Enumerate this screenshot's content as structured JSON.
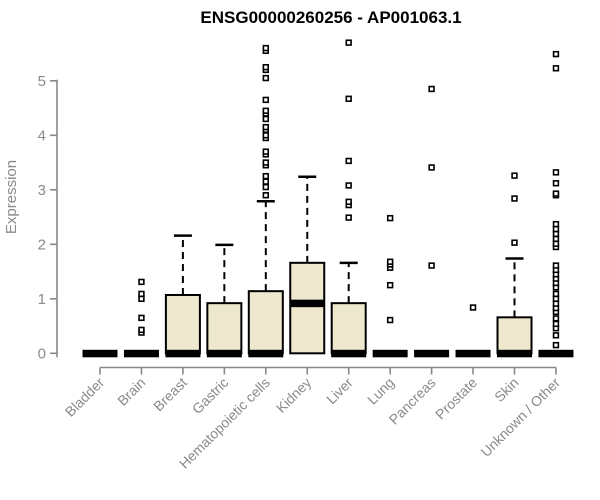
{
  "chart_data": {
    "type": "boxplot",
    "title": "ENSG00000260256 - AP001063.1",
    "ylabel": "Expression",
    "xlabel": "",
    "ylim": [
      0,
      5
    ],
    "yticks": [
      0,
      1,
      2,
      3,
      4,
      5
    ],
    "grid": false,
    "legend": "none",
    "categories": [
      "Bladder",
      "Brain",
      "Breast",
      "Gastric",
      "Hematopoietic cells",
      "Kidney",
      "Liver",
      "Lung",
      "Pancreas",
      "Prostate",
      "Skin",
      "Unknown / Other"
    ],
    "series": [
      {
        "name": "Bladder",
        "whisker_low": 0,
        "q1": 0,
        "median": 0,
        "q3": 0,
        "whisker_high": 0,
        "outliers": []
      },
      {
        "name": "Brain",
        "whisker_low": 0,
        "q1": 0,
        "median": 0,
        "q3": 0,
        "whisker_high": 0,
        "outliers": [
          0.38,
          0.43,
          0.65,
          1.0,
          1.09,
          1.31
        ]
      },
      {
        "name": "Breast",
        "whisker_low": 0,
        "q1": 0,
        "median": 0,
        "q3": 1.07,
        "whisker_high": 2.16,
        "outliers": []
      },
      {
        "name": "Gastric",
        "whisker_low": 0,
        "q1": 0,
        "median": 0,
        "q3": 0.92,
        "whisker_high": 1.99,
        "outliers": []
      },
      {
        "name": "Hematopoietic cells",
        "whisker_low": 0,
        "q1": 0,
        "median": 0,
        "q3": 1.14,
        "whisker_high": 2.79,
        "outliers": [
          2.9,
          3.05,
          3.15,
          3.25,
          3.45,
          3.5,
          3.65,
          3.7,
          3.95,
          4.0,
          4.1,
          4.15,
          4.3,
          4.4,
          4.45,
          4.65,
          5.05,
          5.2,
          5.25,
          5.55,
          5.6
        ]
      },
      {
        "name": "Kidney",
        "whisker_low": 0,
        "q1": 0,
        "median": 0.92,
        "q3": 1.66,
        "whisker_high": 3.24,
        "outliers": []
      },
      {
        "name": "Liver",
        "whisker_low": 0,
        "q1": 0,
        "median": 0,
        "q3": 0.92,
        "whisker_high": 1.66,
        "outliers": [
          2.49,
          2.72,
          2.78,
          3.08,
          3.53,
          4.67,
          5.7
        ]
      },
      {
        "name": "Lung",
        "whisker_low": 0,
        "q1": 0,
        "median": 0,
        "q3": 0,
        "whisker_high": 0,
        "outliers": [
          0.61,
          1.25,
          1.57,
          1.63,
          1.68,
          2.48
        ]
      },
      {
        "name": "Pancreas",
        "whisker_low": 0,
        "q1": 0,
        "median": 0,
        "q3": 0,
        "whisker_high": 0,
        "outliers": [
          1.61,
          3.41,
          4.85
        ]
      },
      {
        "name": "Prostate",
        "whisker_low": 0,
        "q1": 0,
        "median": 0,
        "q3": 0,
        "whisker_high": 0,
        "outliers": [
          0.84
        ]
      },
      {
        "name": "Skin",
        "whisker_low": 0,
        "q1": 0,
        "median": 0,
        "q3": 0.66,
        "whisker_high": 1.74,
        "outliers": [
          2.03,
          2.84,
          3.26
        ]
      },
      {
        "name": "Unknown / Other",
        "whisker_low": 0,
        "q1": 0,
        "median": 0,
        "q3": 0,
        "whisker_high": 0,
        "outliers": [
          0.15,
          0.33,
          0.46,
          0.54,
          0.64,
          0.76,
          0.83,
          0.91,
          1.0,
          1.09,
          1.21,
          1.29,
          1.37,
          1.45,
          1.53,
          1.61,
          1.95,
          2.01,
          2.1,
          2.19,
          2.28,
          2.37,
          2.9,
          2.93,
          3.12,
          3.32,
          5.23,
          5.49
        ]
      }
    ],
    "colors": {
      "box_fill": "#EDE8CE",
      "box_border": "#000000",
      "median": "#000000",
      "whisker": "#000000",
      "outlier_stroke": "#000000",
      "outlier_fill": "#FFFFFF",
      "axis_line": "#888888",
      "axis_text": "#8A8A8A",
      "title": "#000000",
      "background": "#FFFFFF"
    }
  }
}
